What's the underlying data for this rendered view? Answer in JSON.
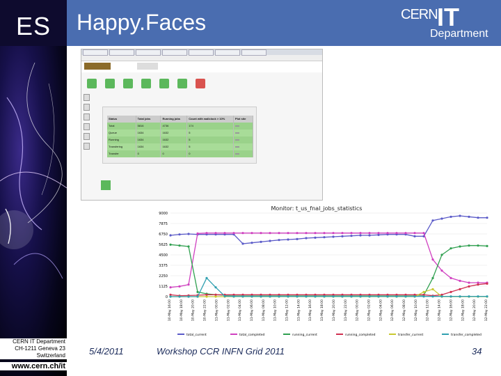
{
  "header": {
    "es": "ES",
    "title": "Happy.Faces",
    "logo": {
      "cern": "CERN",
      "it": "IT",
      "department": "Department"
    }
  },
  "sidebar": {
    "address": [
      "CERN IT Department",
      "CH-1211 Geneva 23",
      "Switzerland"
    ],
    "www": "www.cern.ch/it"
  },
  "footer": {
    "date": "5/4/2011",
    "event": "Workshop CCR INFN Grid 2011",
    "page": "34"
  },
  "screenshot": {
    "tabs": [
      "",
      "",
      "",
      "",
      "",
      "",
      ""
    ],
    "url": "",
    "table_header": [
      "Status",
      "Total jobs",
      "Running jobs",
      "Count with wallclock > 10%",
      "Plot site"
    ],
    "rows": [
      {
        "name": "Total",
        "total": "5816",
        "running": "4736",
        "count": "174"
      },
      {
        "name": "Queue",
        "total": "1634",
        "running": "1632",
        "count": "5"
      },
      {
        "name": "Running",
        "total": "1634",
        "running": "1632",
        "count": "5"
      },
      {
        "name": "Transfering",
        "total": "1634",
        "running": "1632",
        "count": "5"
      },
      {
        "name": "Transfer",
        "total": "0",
        "running": "0",
        "count": "0"
      }
    ]
  },
  "chart_data": {
    "type": "line",
    "title": "Monitor: t_us_fnal_jobs_statistics",
    "ylim": [
      0,
      9000
    ],
    "yticks": [
      "0",
      "1125",
      "2250",
      "3375",
      "4500",
      "5625",
      "6750",
      "7875",
      "9000"
    ],
    "xticks": [
      "10-May 16:00",
      "10-May 18:00",
      "10-May 20:00",
      "10-May 22:00",
      "11-May 00:00",
      "11-May 02:00",
      "11-May 04:00",
      "11-May 06:00",
      "11-May 08:00",
      "11-May 10:00",
      "11-May 12:00",
      "11-May 14:00",
      "11-May 16:00",
      "11-May 18:00",
      "11-May 20:00",
      "11-May 22:00",
      "12-May 00:00",
      "12-May 02:00",
      "12-May 04:00",
      "12-May 06:00",
      "12-May 08:00",
      "12-May 10:00",
      "12-May 12:00",
      "12-May 14:00",
      "12-May 16:00",
      "12-May 18:00",
      "12-May 20:00",
      "12-May 22:00"
    ],
    "legend": [
      "total_current",
      "total_completed",
      "running_current",
      "running_completed",
      "transfer_current",
      "transfer_completed"
    ],
    "series": [
      {
        "name": "total_current",
        "color": "#5a5ac8",
        "values": [
          6600,
          6700,
          6750,
          6700,
          6700,
          6700,
          6700,
          6700,
          5700,
          5800,
          5900,
          6000,
          6100,
          6150,
          6200,
          6300,
          6350,
          6400,
          6450,
          6500,
          6550,
          6600,
          6600,
          6650,
          6700,
          6700,
          6700,
          6500,
          6500,
          8200,
          8400,
          8600,
          8700,
          8600,
          8500,
          8500
        ]
      },
      {
        "name": "total_completed",
        "color": "#d040c0",
        "values": [
          1000,
          1100,
          1300,
          6800,
          6850,
          6850,
          6850,
          6850,
          6850,
          6850,
          6850,
          6850,
          6850,
          6850,
          6850,
          6850,
          6850,
          6850,
          6850,
          6850,
          6850,
          6850,
          6850,
          6850,
          6850,
          6850,
          6850,
          6850,
          6850,
          4000,
          2800,
          2000,
          1700,
          1500,
          1500,
          1500
        ]
      },
      {
        "name": "running_current",
        "color": "#30a050",
        "values": [
          5600,
          5500,
          5400,
          500,
          300,
          200,
          150,
          150,
          150,
          150,
          150,
          150,
          150,
          150,
          150,
          150,
          150,
          150,
          150,
          150,
          150,
          150,
          150,
          150,
          150,
          150,
          150,
          150,
          150,
          2000,
          4500,
          5200,
          5400,
          5500,
          5500,
          5450
        ]
      },
      {
        "name": "running_completed",
        "color": "#d03050",
        "values": [
          200,
          100,
          120,
          150,
          200,
          200,
          200,
          200,
          200,
          200,
          200,
          200,
          200,
          200,
          200,
          200,
          200,
          200,
          200,
          200,
          200,
          200,
          200,
          200,
          200,
          200,
          200,
          200,
          200,
          100,
          200,
          500,
          800,
          1100,
          1300,
          1400
        ]
      },
      {
        "name": "transfer_current",
        "color": "#c8c830",
        "values": [
          0,
          0,
          0,
          0,
          0,
          0,
          0,
          0,
          0,
          0,
          0,
          0,
          0,
          0,
          0,
          0,
          0,
          0,
          0,
          0,
          0,
          0,
          0,
          0,
          0,
          0,
          0,
          0,
          500,
          800,
          0,
          0,
          0,
          0,
          0,
          0
        ]
      },
      {
        "name": "transfer_completed",
        "color": "#30a0b0",
        "values": [
          0,
          0,
          0,
          0,
          2000,
          1000,
          50,
          20,
          20,
          20,
          20,
          20,
          20,
          20,
          20,
          20,
          20,
          20,
          20,
          20,
          20,
          20,
          20,
          20,
          20,
          20,
          20,
          20,
          20,
          20,
          20,
          20,
          20,
          20,
          20,
          20
        ]
      }
    ]
  }
}
